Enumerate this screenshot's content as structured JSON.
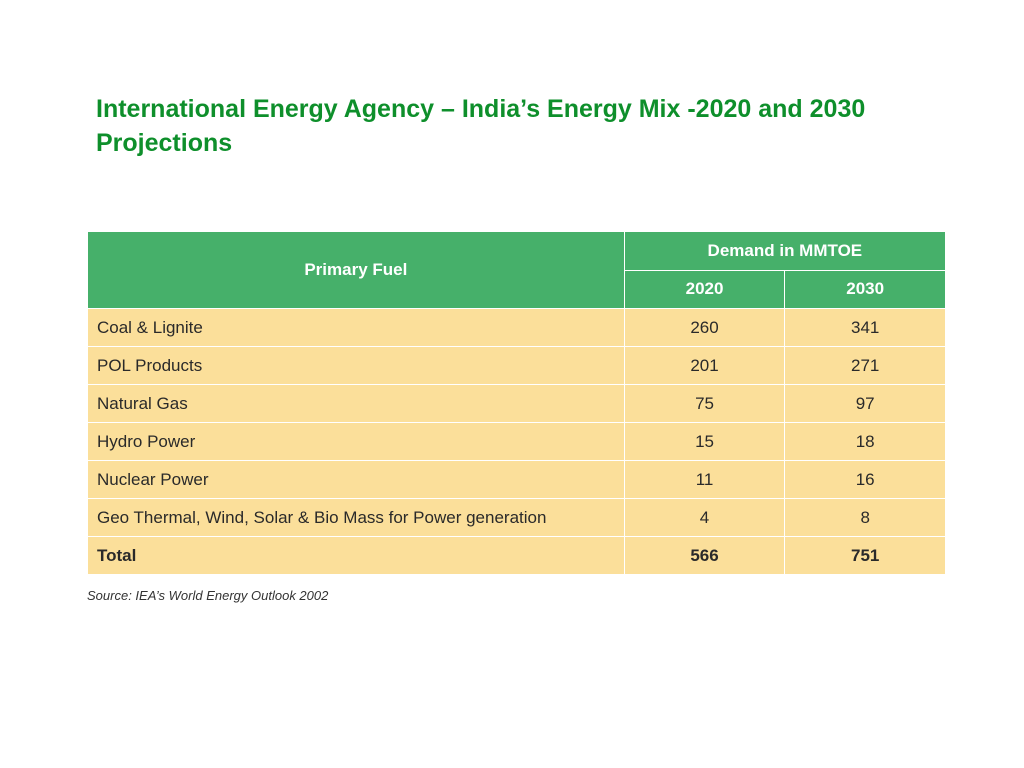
{
  "title": {
    "line1": "International Energy Agency – India’s Energy Mix -2020 and 2030",
    "line2": "Projections"
  },
  "table": {
    "primary_header": "Primary Fuel",
    "demand_header": "Demand in MMTOE",
    "years": [
      "2020",
      "2030"
    ],
    "rows": [
      {
        "fuel": "Coal & Lignite",
        "v2020": "260",
        "v2030": "341"
      },
      {
        "fuel": "POL Products",
        "v2020": "201",
        "v2030": "271"
      },
      {
        "fuel": "Natural Gas",
        "v2020": "75",
        "v2030": "97"
      },
      {
        "fuel": "Hydro Power",
        "v2020": "15",
        "v2030": "18"
      },
      {
        "fuel": "Nuclear Power",
        "v2020": "11",
        "v2030": "16"
      },
      {
        "fuel": "Geo Thermal, Wind, Solar & Bio Mass for Power generation",
        "v2020": "4",
        "v2030": "8"
      }
    ],
    "total": {
      "label": "Total",
      "v2020": "566",
      "v2030": "751"
    }
  },
  "source": "Source: IEA’s World Energy Outlook 2002",
  "colors": {
    "title": "#0e8f2b",
    "header_bg": "#46b06a",
    "row_bg": "#fbdf9a"
  }
}
